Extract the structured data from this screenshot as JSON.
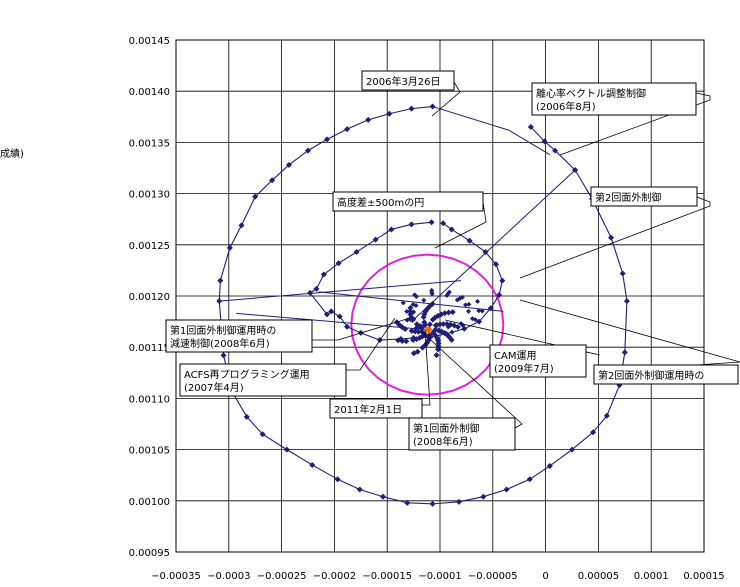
{
  "left_fragment": "成績)",
  "chart_data": {
    "type": "scatter",
    "xlim": [
      -0.00035,
      0.00015
    ],
    "ylim": [
      0.00095,
      0.00145
    ],
    "grid": true,
    "xticks": [
      "−0.00035",
      "−0.0003",
      "−0.00025",
      "−0.0002",
      "−0.00015",
      "−0.0001",
      "−0.00005",
      "0",
      "0.00005",
      "0.0001",
      "0.00015"
    ],
    "yticks": [
      "0.00095",
      "0.00100",
      "0.00105",
      "0.00110",
      "0.00115",
      "0.00120",
      "0.00125",
      "0.00130",
      "0.00135",
      "0.00140",
      "0.00145"
    ],
    "colors": {
      "trajectory": "#1f1f7a",
      "circle": "#e020e0",
      "center": "#ff6600"
    },
    "trajectory": [
      [
        -0.000107,
        0.001385
      ],
      [
        -0.000127,
        0.001383
      ],
      [
        -0.000148,
        0.001378
      ],
      [
        -0.000168,
        0.001372
      ],
      [
        -0.000188,
        0.001363
      ],
      [
        -0.000207,
        0.001353
      ],
      [
        -0.000225,
        0.001342
      ],
      [
        -0.000243,
        0.001328
      ],
      [
        -0.000259,
        0.001313
      ],
      [
        -0.000275,
        0.001297
      ],
      [
        -0.000288,
        0.001269
      ],
      [
        -0.000299,
        0.001247
      ],
      [
        -0.000308,
        0.001215
      ],
      [
        -0.000309,
        0.001195
      ],
      [
        -0.000305,
        0.001142
      ],
      [
        -0.000296,
        0.001105
      ],
      [
        -0.000283,
        0.001082
      ],
      [
        -0.000268,
        0.001065
      ],
      [
        -0.000245,
        0.00105
      ],
      [
        -0.000221,
        0.001035
      ],
      [
        -0.000197,
        0.001021
      ],
      [
        -0.000176,
        0.001011
      ],
      [
        -0.000154,
        0.001004
      ],
      [
        -0.000131,
        0.000998
      ],
      [
        -0.000107,
        0.000997
      ],
      [
        -8.2e-05,
        0.000999
      ],
      [
        -5.9e-05,
        0.001004
      ],
      [
        -3.7e-05,
        0.001011
      ],
      [
        -1.5e-05,
        0.001021
      ],
      [
        4e-06,
        0.001034
      ],
      [
        2.5e-05,
        0.00105
      ],
      [
        4.5e-05,
        0.001067
      ],
      [
        5.8e-05,
        0.001083
      ],
      [
        7e-05,
        0.001113
      ],
      [
        7.5e-05,
        0.001145
      ],
      [
        7.7e-05,
        0.001195
      ],
      [
        7.3e-05,
        0.001222
      ],
      [
        6.2e-05,
        0.001257
      ],
      [
        4.4e-05,
        0.001295
      ],
      [
        2.8e-05,
        0.001323
      ],
      [
        9e-06,
        0.001342
      ],
      [
        -1e-06,
        0.001351
      ],
      [
        -1.4e-05,
        0.001365
      ]
    ],
    "inner_spiral": [
      [
        -0.000108,
        0.001272
      ],
      [
        -0.000127,
        0.00127
      ],
      [
        -0.000146,
        0.001265
      ],
      [
        -0.000161,
        0.001255
      ],
      [
        -0.000179,
        0.001243
      ],
      [
        -0.000196,
        0.001232
      ],
      [
        -0.00021,
        0.001221
      ],
      [
        -0.000217,
        0.001207
      ],
      [
        -0.000223,
        0.001203
      ],
      [
        -0.000207,
        0.001182
      ],
      [
        -0.000203,
        0.001185
      ],
      [
        -0.000195,
        0.00118
      ],
      [
        -0.000188,
        0.00117
      ],
      [
        -0.000175,
        0.001164
      ],
      [
        -0.000157,
        0.001157
      ],
      [
        -0.000137,
        0.001158
      ],
      [
        -0.000125,
        0.001159
      ],
      [
        -0.000109,
        0.00116
      ],
      [
        -9.4e-05,
        0.001163
      ],
      [
        -7.7e-05,
        0.001168
      ],
      [
        -6.3e-05,
        0.001175
      ],
      [
        -5.2e-05,
        0.001188
      ],
      [
        -4.4e-05,
        0.001201
      ],
      [
        -4.1e-05,
        0.001215
      ],
      [
        -4.7e-05,
        0.001231
      ],
      [
        -5.7e-05,
        0.001243
      ],
      [
        -7.2e-05,
        0.001254
      ],
      [
        -8.9e-05,
        0.001265
      ],
      [
        -9.7e-05,
        0.001271
      ]
    ],
    "circle": {
      "label": "高度差±500mの円",
      "cx": -0.000112,
      "cy": 0.001172,
      "r": 7.2e-05
    },
    "center_point": [
      -0.000111,
      0.001167
    ],
    "annotations": [
      {
        "id": "a1",
        "lines": [
          "2006年3月26日"
        ]
      },
      {
        "id": "a2",
        "lines": [
          "離心率ベクトル調整制御",
          "(2006年8月)"
        ]
      },
      {
        "id": "a3",
        "lines": [
          "第2回面外制御"
        ]
      },
      {
        "id": "a4",
        "lines": [
          "高度差±500mの円"
        ]
      },
      {
        "id": "a5",
        "lines": [
          "第1回面外制御運用時の",
          "減速制御(2008年6月)"
        ]
      },
      {
        "id": "a6",
        "lines": [
          "CAM運用",
          "(2009年7月)"
        ]
      },
      {
        "id": "a7",
        "lines": [
          "第2回面外制御運用時の"
        ]
      },
      {
        "id": "a8",
        "lines": [
          "ACFS再プログラミング運用",
          "(2007年4月)"
        ]
      },
      {
        "id": "a9",
        "lines": [
          "2011年2月1日"
        ]
      },
      {
        "id": "a10",
        "lines": [
          "第1回面外制御",
          "(2008年6月)"
        ]
      }
    ]
  }
}
